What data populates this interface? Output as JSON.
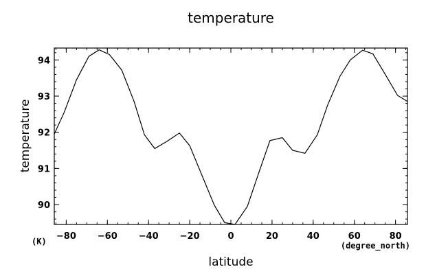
{
  "chart_data": {
    "type": "line",
    "title": "temperature",
    "xlabel": "latitude",
    "ylabel": "temperature",
    "x_unit": "(degree_north)",
    "y_unit": "(K)",
    "xlim": [
      -85.8,
      85.8
    ],
    "ylim": [
      89.45,
      94.33
    ],
    "x_ticks": [
      -80,
      -60,
      -40,
      -20,
      0,
      20,
      40,
      60,
      80
    ],
    "x_tick_labels": [
      "−80",
      "−60",
      "−40",
      "−20",
      "0",
      "20",
      "40",
      "60",
      "80"
    ],
    "y_ticks": [
      90,
      91,
      92,
      93,
      94
    ],
    "y_tick_labels": [
      "90",
      "91",
      "92",
      "93",
      "94"
    ],
    "x_minor_step": 5,
    "y_minor_step": 0.2,
    "grid": false,
    "series": [
      {
        "x": [
          -85.8,
          -81,
          -75,
          -69,
          -64,
          -59,
          -53,
          -47,
          -42,
          -37,
          -31,
          -25,
          -20,
          -14,
          -8,
          -3,
          2,
          8,
          14,
          19,
          25,
          30,
          36,
          42,
          47,
          53,
          58,
          64,
          69,
          75,
          81,
          85.8
        ],
        "values": [
          91.95,
          92.55,
          93.45,
          94.1,
          94.28,
          94.15,
          93.72,
          92.85,
          91.93,
          91.55,
          91.75,
          91.98,
          91.63,
          90.8,
          89.98,
          89.5,
          89.45,
          89.95,
          90.95,
          91.77,
          91.85,
          91.5,
          91.42,
          91.93,
          92.75,
          93.55,
          94.0,
          94.27,
          94.17,
          93.6,
          93.02,
          92.85
        ]
      }
    ]
  }
}
